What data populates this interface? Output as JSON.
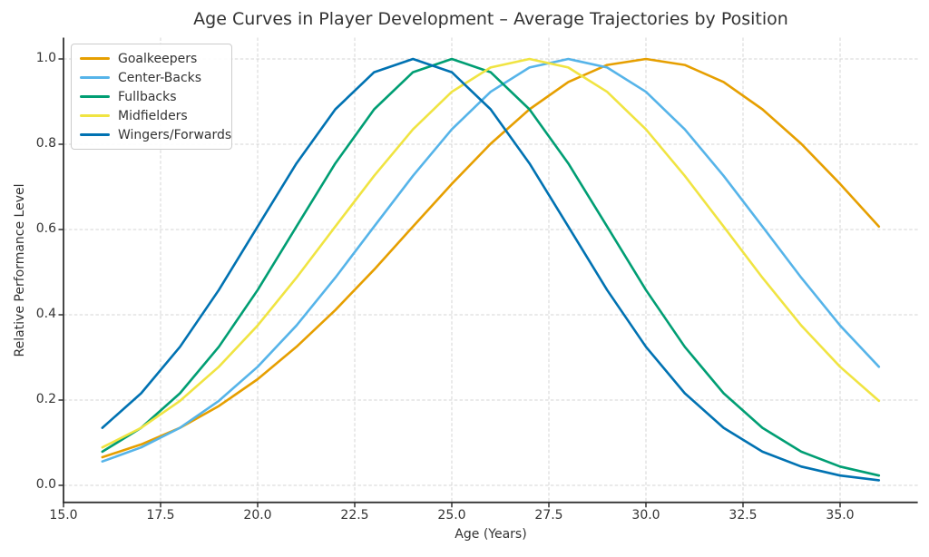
{
  "chart_data": {
    "type": "line",
    "title": "Age Curves in Player Development – Average Trajectories by Position",
    "xlabel": "Age (Years)",
    "ylabel": "Relative Performance Level",
    "x": [
      16,
      17,
      18,
      19,
      20,
      21,
      22,
      23,
      24,
      25,
      26,
      27,
      28,
      29,
      30,
      31,
      32,
      33,
      34,
      35,
      36
    ],
    "series": [
      {
        "name": "Goalkeepers",
        "color": "#E69F00",
        "peak_age": 30,
        "values": [
          0.066,
          0.096,
          0.135,
          0.186,
          0.249,
          0.325,
          0.411,
          0.506,
          0.607,
          0.707,
          0.801,
          0.882,
          0.946,
          0.986,
          1.0,
          0.986,
          0.946,
          0.882,
          0.801,
          0.707,
          0.607
        ]
      },
      {
        "name": "Center-Backs",
        "color": "#56B4E9",
        "peak_age": 28,
        "values": [
          0.056,
          0.089,
          0.135,
          0.198,
          0.278,
          0.375,
          0.487,
          0.607,
          0.726,
          0.835,
          0.923,
          0.98,
          1.0,
          0.98,
          0.923,
          0.835,
          0.726,
          0.607,
          0.487,
          0.375,
          0.278
        ]
      },
      {
        "name": "Fullbacks",
        "color": "#009E73",
        "peak_age": 25,
        "values": [
          0.079,
          0.135,
          0.216,
          0.325,
          0.458,
          0.607,
          0.755,
          0.882,
          0.969,
          1.0,
          0.969,
          0.882,
          0.755,
          0.607,
          0.458,
          0.325,
          0.216,
          0.135,
          0.079,
          0.044,
          0.023
        ]
      },
      {
        "name": "Midfielders",
        "color": "#F0E442",
        "peak_age": 27,
        "values": [
          0.089,
          0.135,
          0.198,
          0.278,
          0.375,
          0.487,
          0.607,
          0.726,
          0.835,
          0.923,
          0.98,
          1.0,
          0.98,
          0.923,
          0.835,
          0.726,
          0.607,
          0.487,
          0.375,
          0.278,
          0.198
        ]
      },
      {
        "name": "Wingers/Forwards",
        "color": "#0072B2",
        "peak_age": 24,
        "values": [
          0.135,
          0.216,
          0.325,
          0.458,
          0.607,
          0.755,
          0.882,
          0.969,
          1.0,
          0.969,
          0.882,
          0.755,
          0.607,
          0.458,
          0.325,
          0.216,
          0.135,
          0.079,
          0.044,
          0.023,
          0.012
        ]
      }
    ],
    "x_ticks": [
      15,
      17.5,
      20,
      22.5,
      25,
      27.5,
      30,
      32.5,
      35
    ],
    "x_tick_labels": [
      "15.0",
      "17.5",
      "20.0",
      "22.5",
      "25.0",
      "27.5",
      "30.0",
      "32.5",
      "35.0"
    ],
    "y_ticks": [
      0,
      0.2,
      0.4,
      0.6,
      0.8,
      1.0
    ],
    "y_tick_labels": [
      "0.0",
      "0.2",
      "0.4",
      "0.6",
      "0.8",
      "1.0"
    ],
    "xlim": [
      15,
      37
    ],
    "ylim": [
      -0.04,
      1.05
    ],
    "grid": true,
    "grid_style": "dashed",
    "grid_color": "#d4d4d4",
    "spine_color": "#333333",
    "legend_position": "upper left",
    "background_color": "#ffffff"
  }
}
